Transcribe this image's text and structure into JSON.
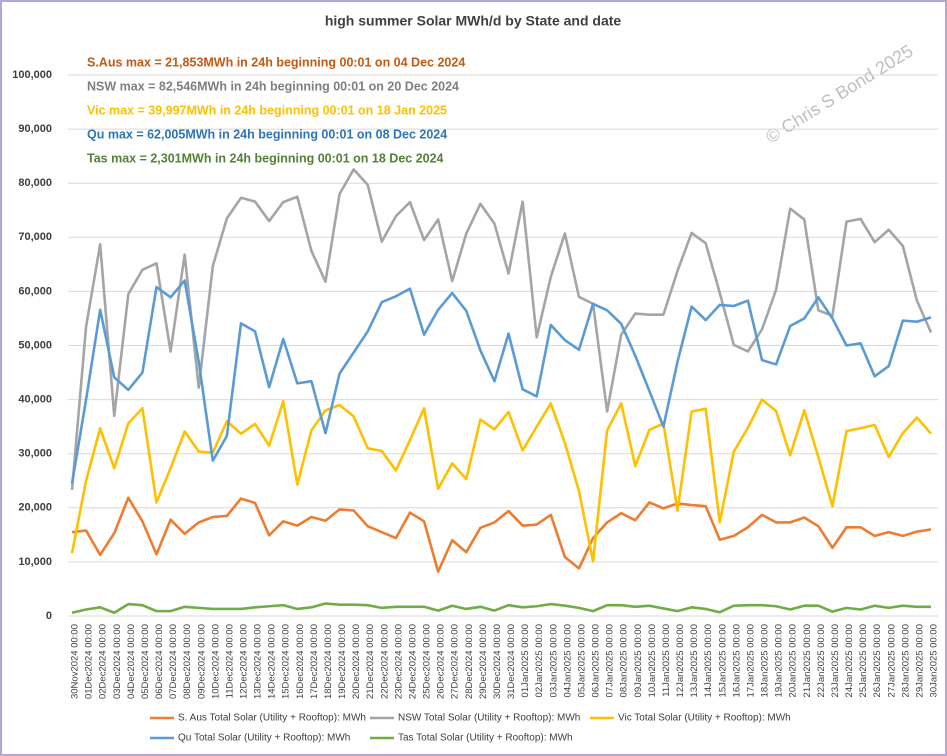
{
  "chart_data": {
    "type": "line",
    "title": "high summer Solar MWh/d by State and date",
    "annotations": [
      {
        "text": "S.Aus max = 21,853MWh in 24h beginning 00:01 on 04 Dec 2024",
        "color": "#c55a11"
      },
      {
        "text": "NSW max = 82,546MWh in 24h beginning 00:01 on 20 Dec 2024",
        "color": "#7f7f7f"
      },
      {
        "text": "Vic max = 39,997MWh in 24h beginning 00:01 on 18 Jan 2025",
        "color": "#ffc000"
      },
      {
        "text": "Qu max = 62,005MWh in 24h beginning 00:01 on 08 Dec 2024",
        "color": "#2e75b6"
      },
      {
        "text": "Tas max = 2,301MWh in 24h beginning 00:01 on 18 Dec 2024",
        "color": "#548235"
      }
    ],
    "watermark": "© Chris S Bond  2025",
    "categories": [
      "30Nov2024 00:00",
      "01Dec2024 00:00",
      "02Dec2024 00:00",
      "03Dec2024 00:00",
      "04Dec2024 00:00",
      "05Dec2024 00:00",
      "06Dec2024 00:00",
      "07Dec2024 00:00",
      "08Dec2024 00:00",
      "09Dec2024 00:00",
      "10Dec2024 00:00",
      "11Dec2024 00:00",
      "12Dec2024 00:00",
      "13Dec2024 00:00",
      "14Dec2024 00:00",
      "15Dec2024 00:00",
      "16Dec2024 00:00",
      "17Dec2024 00:00",
      "18Dec2024 00:00",
      "19Dec2024 00:00",
      "20Dec2024 00:00",
      "21Dec2024 00:00",
      "22Dec2024 00:00",
      "23Dec2024 00:00",
      "24Dec2024 00:00",
      "25Dec2024 00:00",
      "26Dec2024 00:00",
      "27Dec2024 00:00",
      "28Dec2024 00:00",
      "29Dec2024 00:00",
      "30Dec2024 00:00",
      "31Dec2024 00:00",
      "01Jan2025 00:00",
      "02Jan2025 00:00",
      "03Jan2025 00:00",
      "04Jan2025 00:00",
      "05Jan2025 00:00",
      "06Jan2025 00:00",
      "07Jan2025 00:00",
      "08Jan2025 00:00",
      "09Jan2025 00:00",
      "10Jan2025 00:00",
      "11Jan2025 00:00",
      "12Jan2025 00:00",
      "13Jan2025 00:00",
      "14Jan2025 00:00",
      "15Jan2025 00:00",
      "16Jan2025 00:00",
      "17Jan2025 00:00",
      "18Jan2025 00:00",
      "19Jan2025 00:00",
      "20Jan2025 00:00",
      "21Jan2025 00:00",
      "22Jan2025 00:00",
      "23Jan2025 00:00",
      "24Jan2025 00:00",
      "25Jan2025 00:00",
      "26Jan2025 00:00",
      "27Jan2025 00:00",
      "28Jan2025 00:00",
      "29Jan2025 00:00",
      "30Jan2025 00:00"
    ],
    "series": [
      {
        "name": "S. Aus Total Solar (Utility + Rooftop): MWh",
        "color": "#ed7d31",
        "values": [
          15500,
          15800,
          11300,
          15300,
          21853,
          17500,
          11400,
          17800,
          15200,
          17300,
          18300,
          18500,
          21700,
          20900,
          14900,
          17500,
          16700,
          18300,
          17600,
          19700,
          19500,
          16600,
          15500,
          14400,
          19100,
          17500,
          8200,
          14000,
          11800,
          16300,
          17300,
          19400,
          16700,
          16900,
          18700,
          10900,
          8800,
          14400,
          17300,
          19000,
          17700,
          21000,
          19900,
          20800,
          20500,
          20300,
          14100,
          14800,
          16400,
          18700,
          17300,
          17300,
          18200,
          16600,
          12600,
          16400,
          16400,
          14800,
          15500,
          14800,
          15600,
          16000
        ]
      },
      {
        "name": "NSW Total Solar (Utility + Rooftop): MWh",
        "color": "#a5a5a5",
        "values": [
          23300,
          53500,
          68700,
          37000,
          59500,
          64000,
          65200,
          48900,
          66800,
          42200,
          64700,
          73500,
          77300,
          76600,
          73000,
          76500,
          77500,
          67500,
          61800,
          78000,
          82546,
          79700,
          69200,
          73900,
          76500,
          69500,
          73300,
          61900,
          70700,
          76200,
          72500,
          63300,
          76600,
          51500,
          62700,
          70700,
          59000,
          57700,
          37800,
          52000,
          55900,
          55700,
          55700,
          63800,
          70800,
          68900,
          59700,
          50100,
          48900,
          53000,
          60300,
          75300,
          73300,
          56500,
          55500,
          72900,
          73400,
          69100,
          71400,
          68400,
          58300,
          52400
        ]
      },
      {
        "name": "Vic Total Solar (Utility + Rooftop): MWh",
        "color": "#ffc000",
        "values": [
          11600,
          25000,
          34700,
          27300,
          35600,
          38400,
          21000,
          27300,
          34100,
          30400,
          30200,
          36000,
          33700,
          35500,
          31500,
          39700,
          24300,
          34300,
          38000,
          39000,
          36900,
          31000,
          30500,
          26900,
          32500,
          38400,
          23500,
          28200,
          25300,
          36300,
          34500,
          37700,
          30600,
          35000,
          39300,
          32000,
          23100,
          10100,
          34300,
          39300,
          27700,
          34400,
          35600,
          19500,
          37800,
          38300,
          17300,
          30400,
          34800,
          39997,
          37900,
          29700,
          38000,
          29400,
          20300,
          34200,
          34700,
          35300,
          29400,
          33800,
          36700,
          33700
        ]
      },
      {
        "name": "Qu Total Solar (Utility + Rooftop): MWh",
        "color": "#5b9bd5",
        "values": [
          24500,
          40000,
          56600,
          44100,
          41800,
          45000,
          60800,
          58900,
          62005,
          47000,
          28700,
          33300,
          54100,
          52600,
          42300,
          51200,
          43000,
          43400,
          33800,
          44800,
          48700,
          52600,
          58000,
          59100,
          60500,
          52000,
          56600,
          59700,
          56400,
          49100,
          43400,
          52200,
          41900,
          40600,
          53800,
          51000,
          49200,
          57700,
          56500,
          54000,
          48100,
          41600,
          35000,
          47000,
          57200,
          54700,
          57500,
          57300,
          58300,
          47300,
          46500,
          53600,
          55000,
          58900,
          55000,
          50000,
          50400,
          44300,
          46200,
          54600,
          54400,
          55200
        ]
      },
      {
        "name": "Tas Total Solar (Utility + Rooftop): MWh",
        "color": "#70ad47",
        "values": [
          600,
          1200,
          1600,
          600,
          2200,
          2000,
          900,
          900,
          1700,
          1500,
          1300,
          1300,
          1300,
          1600,
          1800,
          2000,
          1300,
          1600,
          2301,
          2100,
          2100,
          2000,
          1500,
          1700,
          1700,
          1700,
          1000,
          1900,
          1300,
          1700,
          1000,
          2000,
          1600,
          1800,
          2200,
          1900,
          1500,
          900,
          2000,
          2000,
          1700,
          1900,
          1400,
          900,
          1600,
          1300,
          700,
          1900,
          2000,
          2000,
          1800,
          1200,
          1900,
          1900,
          800,
          1500,
          1200,
          1900,
          1500,
          1900,
          1700,
          1700
        ]
      }
    ],
    "ylim": [
      0,
      100000
    ],
    "yticks": [
      0,
      {
        "value": 10000,
        "label": "10,000"
      },
      {
        "value": 20000,
        "label": "20,000"
      },
      {
        "value": 30000,
        "label": "30,000"
      },
      {
        "value": 40000,
        "label": "40,000"
      },
      {
        "value": 50000,
        "label": "50,000"
      },
      {
        "value": 60000,
        "label": "60,000"
      },
      {
        "value": 70000,
        "label": "70,000"
      },
      {
        "value": 80000,
        "label": "80,000"
      },
      {
        "value": 90000,
        "label": "90,000"
      },
      {
        "value": 100000,
        "label": "100,000"
      }
    ],
    "grid": true,
    "legend": "bottom"
  }
}
